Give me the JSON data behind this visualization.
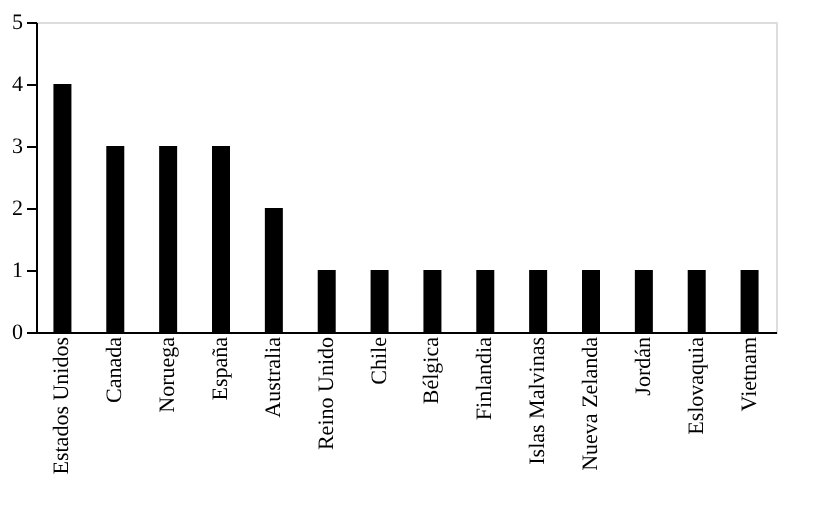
{
  "chart_data": {
    "type": "bar",
    "categories": [
      "Estados Unidos",
      "Canada",
      "Noruega",
      "España",
      "Australia",
      "Reino Unido",
      "Chile",
      "Bélgica",
      "Finlandia",
      "Islas Malvinas",
      "Nueva Zelanda",
      "Jordán",
      "Eslovaquia",
      "Vietnam"
    ],
    "values": [
      4,
      3,
      3,
      3,
      2,
      1,
      1,
      1,
      1,
      1,
      1,
      1,
      1,
      1
    ],
    "color": "#000000",
    "ylim": [
      0,
      5
    ],
    "yticks": [
      0,
      1,
      2,
      3,
      4,
      5
    ],
    "grid": false
  }
}
